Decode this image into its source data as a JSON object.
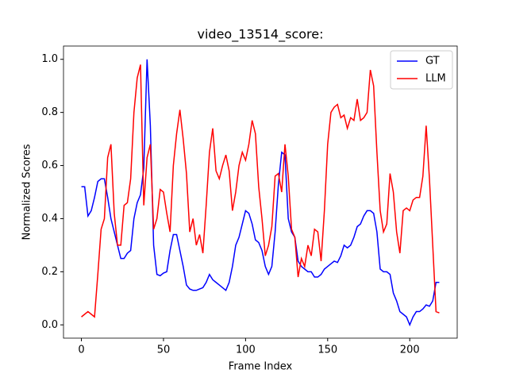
{
  "chart_data": {
    "type": "line",
    "title": "video_13514_score:",
    "x_label": "Frame Index",
    "y_label": "Normalized Scores",
    "x": [
      0,
      2,
      4,
      6,
      8,
      10,
      12,
      14,
      16,
      18,
      20,
      22,
      24,
      26,
      28,
      30,
      32,
      34,
      36,
      38,
      40,
      42,
      44,
      46,
      48,
      50,
      52,
      54,
      56,
      58,
      60,
      62,
      64,
      66,
      68,
      70,
      72,
      74,
      76,
      78,
      80,
      82,
      84,
      86,
      88,
      90,
      92,
      94,
      96,
      98,
      100,
      102,
      104,
      106,
      108,
      110,
      112,
      114,
      116,
      118,
      120,
      122,
      124,
      126,
      128,
      130,
      132,
      134,
      136,
      138,
      140,
      142,
      144,
      146,
      148,
      150,
      152,
      154,
      156,
      158,
      160,
      162,
      164,
      166,
      168,
      170,
      172,
      174,
      176,
      178,
      180,
      182,
      184,
      186,
      188,
      190,
      192,
      194,
      196,
      198,
      200,
      202,
      204,
      206,
      208,
      210,
      212,
      214,
      216,
      218
    ],
    "series": [
      {
        "name": "GT",
        "color": "#0000ff",
        "values": [
          0.52,
          0.52,
          0.41,
          0.43,
          0.48,
          0.54,
          0.55,
          0.55,
          0.48,
          0.4,
          0.35,
          0.3,
          0.25,
          0.25,
          0.27,
          0.28,
          0.4,
          0.46,
          0.49,
          0.59,
          1.0,
          0.75,
          0.3,
          0.19,
          0.185,
          0.195,
          0.2,
          0.28,
          0.34,
          0.34,
          0.28,
          0.22,
          0.15,
          0.135,
          0.13,
          0.13,
          0.135,
          0.14,
          0.16,
          0.19,
          0.17,
          0.16,
          0.15,
          0.14,
          0.13,
          0.16,
          0.22,
          0.3,
          0.33,
          0.38,
          0.43,
          0.42,
          0.38,
          0.32,
          0.31,
          0.28,
          0.22,
          0.19,
          0.22,
          0.35,
          0.53,
          0.65,
          0.64,
          0.4,
          0.35,
          0.33,
          0.24,
          0.22,
          0.21,
          0.2,
          0.2,
          0.18,
          0.18,
          0.19,
          0.21,
          0.22,
          0.23,
          0.24,
          0.235,
          0.26,
          0.3,
          0.29,
          0.3,
          0.33,
          0.37,
          0.38,
          0.41,
          0.43,
          0.43,
          0.42,
          0.35,
          0.21,
          0.2,
          0.2,
          0.19,
          0.12,
          0.09,
          0.05,
          0.04,
          0.03,
          0.0,
          0.03,
          0.05,
          0.05,
          0.06,
          0.075,
          0.07,
          0.09,
          0.16,
          0.16
        ]
      },
      {
        "name": "LLM",
        "color": "#ff0000",
        "values": [
          0.03,
          0.04,
          0.05,
          0.04,
          0.03,
          0.19,
          0.36,
          0.4,
          0.63,
          0.68,
          0.42,
          0.3,
          0.3,
          0.45,
          0.46,
          0.55,
          0.8,
          0.93,
          0.98,
          0.45,
          0.63,
          0.68,
          0.36,
          0.4,
          0.51,
          0.5,
          0.42,
          0.35,
          0.6,
          0.72,
          0.81,
          0.7,
          0.57,
          0.35,
          0.4,
          0.3,
          0.34,
          0.27,
          0.45,
          0.65,
          0.74,
          0.58,
          0.55,
          0.6,
          0.64,
          0.58,
          0.43,
          0.5,
          0.6,
          0.65,
          0.62,
          0.68,
          0.77,
          0.72,
          0.52,
          0.4,
          0.26,
          0.3,
          0.37,
          0.56,
          0.57,
          0.5,
          0.68,
          0.56,
          0.36,
          0.33,
          0.18,
          0.25,
          0.22,
          0.3,
          0.26,
          0.36,
          0.35,
          0.24,
          0.43,
          0.68,
          0.8,
          0.82,
          0.83,
          0.78,
          0.79,
          0.74,
          0.78,
          0.77,
          0.85,
          0.77,
          0.78,
          0.8,
          0.96,
          0.9,
          0.65,
          0.43,
          0.35,
          0.38,
          0.57,
          0.5,
          0.35,
          0.27,
          0.43,
          0.44,
          0.43,
          0.47,
          0.48,
          0.48,
          0.56,
          0.75,
          0.55,
          0.3,
          0.05,
          0.045
        ]
      }
    ],
    "xlim": [
      -10.9,
      228.9
    ],
    "ylim": [
      -0.05,
      1.05
    ],
    "xticks": [
      0,
      50,
      100,
      150,
      200
    ],
    "yticks": [
      {
        "value": 0,
        "label": "0.0"
      },
      0.2,
      0.4,
      0.6,
      0.8,
      {
        "value": 1,
        "label": "1.0"
      }
    ],
    "legend": "upper-right"
  }
}
